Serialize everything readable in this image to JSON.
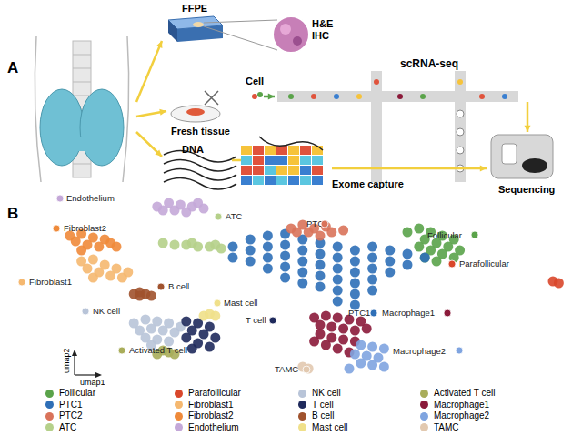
{
  "panel_a": {
    "label": "A",
    "ffpe": "FFPE",
    "stain": [
      "H&E",
      "IHC"
    ],
    "fresh_tissue": "Fresh tissue",
    "cell": "Cell",
    "scrna": "scRNA-seq",
    "dna": "DNA",
    "exome": "Exome capture",
    "sequencing": "Sequencing"
  },
  "panel_b_label": "B",
  "chart_data": {
    "type": "scatter",
    "x_label": "umap1",
    "y_label": "umap2",
    "xlim": [
      0,
      100
    ],
    "ylim": [
      0,
      100
    ],
    "tick_labels": false,
    "grid": false,
    "series": [
      {
        "name": "Follicular",
        "color": "#5aa34a",
        "values": [
          [
            70,
            80
          ],
          [
            72,
            82
          ],
          [
            74,
            80
          ],
          [
            76,
            78
          ],
          [
            78,
            76
          ],
          [
            73,
            76
          ],
          [
            75,
            74
          ],
          [
            77,
            72
          ],
          [
            79,
            70
          ],
          [
            72,
            72
          ],
          [
            74,
            70
          ],
          [
            76,
            68
          ],
          [
            78,
            66
          ],
          [
            75,
            64
          ],
          [
            73,
            66
          ]
        ]
      },
      {
        "name": "PTC1",
        "color": "#2e6fb7",
        "values": [
          [
            40,
            72
          ],
          [
            40,
            66
          ],
          [
            43,
            76
          ],
          [
            43,
            70
          ],
          [
            43,
            64
          ],
          [
            46,
            78
          ],
          [
            46,
            72
          ],
          [
            46,
            66
          ],
          [
            46,
            60
          ],
          [
            49,
            79
          ],
          [
            49,
            73
          ],
          [
            49,
            67
          ],
          [
            49,
            61
          ],
          [
            49,
            55
          ],
          [
            52,
            76
          ],
          [
            52,
            70
          ],
          [
            52,
            64
          ],
          [
            52,
            58
          ],
          [
            52,
            52
          ],
          [
            55,
            74
          ],
          [
            55,
            68
          ],
          [
            55,
            62
          ],
          [
            55,
            56
          ],
          [
            55,
            50
          ],
          [
            58,
            72
          ],
          [
            58,
            66
          ],
          [
            58,
            60
          ],
          [
            58,
            54
          ],
          [
            58,
            48
          ],
          [
            58,
            42
          ],
          [
            61,
            70
          ],
          [
            61,
            64
          ],
          [
            61,
            58
          ],
          [
            61,
            52
          ],
          [
            61,
            46
          ],
          [
            64,
            72
          ],
          [
            64,
            66
          ],
          [
            64,
            60
          ],
          [
            64,
            54
          ],
          [
            67,
            70
          ],
          [
            67,
            64
          ],
          [
            67,
            58
          ],
          [
            70,
            68
          ],
          [
            70,
            62
          ],
          [
            73,
            66
          ],
          [
            61,
            40
          ],
          [
            64,
            48
          ]
        ]
      },
      {
        "name": "PTC2",
        "color": "#d9735a",
        "values": [
          [
            50,
            82
          ],
          [
            52,
            84
          ],
          [
            54,
            82
          ],
          [
            56,
            83
          ],
          [
            53,
            80
          ],
          [
            57,
            80
          ],
          [
            55,
            78
          ],
          [
            59,
            81
          ],
          [
            51,
            80
          ]
        ]
      },
      {
        "name": "ATC",
        "color": "#b5d08a",
        "values": [
          [
            28,
            74
          ],
          [
            30,
            73
          ],
          [
            32,
            73
          ],
          [
            34,
            72
          ],
          [
            36,
            72
          ],
          [
            38,
            71
          ],
          [
            37,
            73
          ],
          [
            33,
            74
          ]
        ]
      },
      {
        "name": "Parafollicular",
        "color": "#d9472b",
        "values": [
          [
            95,
            53
          ],
          [
            96,
            52
          ]
        ]
      },
      {
        "name": "Fibroblast1",
        "color": "#f5b870",
        "values": [
          [
            14,
            64
          ],
          [
            16,
            65
          ],
          [
            18,
            62
          ],
          [
            20,
            60
          ],
          [
            15,
            60
          ],
          [
            17,
            58
          ],
          [
            19,
            56
          ],
          [
            21,
            55
          ],
          [
            16,
            55
          ],
          [
            22,
            58
          ]
        ]
      },
      {
        "name": "Fibroblast2",
        "color": "#ef8a3a",
        "values": [
          [
            12,
            78
          ],
          [
            14,
            79
          ],
          [
            16,
            77
          ],
          [
            18,
            76
          ],
          [
            13,
            75
          ],
          [
            15,
            73
          ],
          [
            17,
            72
          ],
          [
            19,
            74
          ],
          [
            20,
            72
          ],
          [
            14,
            70
          ]
        ]
      },
      {
        "name": "Endothelium",
        "color": "#c4a8d8",
        "values": [
          [
            27,
            94
          ],
          [
            29,
            96
          ],
          [
            31,
            95
          ],
          [
            33,
            94
          ],
          [
            35,
            93
          ],
          [
            30,
            92
          ],
          [
            32,
            91
          ],
          [
            28,
            92
          ],
          [
            34,
            96
          ]
        ]
      },
      {
        "name": "NK cell",
        "color": "#b8c4d8",
        "values": [
          [
            23,
            30
          ],
          [
            25,
            32
          ],
          [
            27,
            31
          ],
          [
            29,
            30
          ],
          [
            24,
            26
          ],
          [
            26,
            27
          ],
          [
            28,
            26
          ],
          [
            30,
            25
          ],
          [
            25,
            22
          ],
          [
            27,
            21
          ],
          [
            29,
            20
          ],
          [
            26,
            18
          ],
          [
            31,
            28
          ]
        ]
      },
      {
        "name": "T cell",
        "color": "#1f2a5c",
        "values": [
          [
            32,
            31
          ],
          [
            34,
            30
          ],
          [
            36,
            28
          ],
          [
            33,
            26
          ],
          [
            35,
            24
          ],
          [
            37,
            22
          ],
          [
            32,
            22
          ],
          [
            34,
            19
          ],
          [
            36,
            17
          ],
          [
            33,
            16
          ]
        ]
      },
      {
        "name": "B cell",
        "color": "#a0522d",
        "values": [
          [
            23,
            46
          ],
          [
            24,
            47
          ],
          [
            25,
            46
          ],
          [
            26,
            45
          ],
          [
            24,
            45
          ]
        ]
      },
      {
        "name": "Mast cell",
        "color": "#f0e08a",
        "values": [
          [
            35,
            34
          ],
          [
            36,
            35
          ],
          [
            37,
            34
          ]
        ]
      },
      {
        "name": "Activated T cell",
        "color": "#a9ad5a",
        "values": [
          [
            28,
            15
          ],
          [
            29,
            14
          ],
          [
            30,
            13
          ],
          [
            27,
            13
          ]
        ]
      },
      {
        "name": "Macrophage1",
        "color": "#8b1a3a",
        "values": [
          [
            54,
            33
          ],
          [
            56,
            34
          ],
          [
            58,
            33
          ],
          [
            60,
            32
          ],
          [
            62,
            31
          ],
          [
            55,
            29
          ],
          [
            57,
            28
          ],
          [
            59,
            27
          ],
          [
            61,
            26
          ],
          [
            63,
            27
          ],
          [
            55,
            24
          ],
          [
            57,
            22
          ],
          [
            59,
            21
          ],
          [
            61,
            20
          ],
          [
            56,
            18
          ],
          [
            58,
            16
          ],
          [
            60,
            14
          ],
          [
            54,
            20
          ]
        ]
      },
      {
        "name": "Macrophage2",
        "color": "#7fa4e0",
        "values": [
          [
            62,
            18
          ],
          [
            64,
            17
          ],
          [
            66,
            16
          ],
          [
            61,
            13
          ],
          [
            63,
            12
          ],
          [
            65,
            11
          ],
          [
            62,
            8
          ],
          [
            64,
            7
          ],
          [
            66,
            6
          ],
          [
            60,
            5
          ]
        ]
      },
      {
        "name": "TAMC",
        "color": "#e2c9b0",
        "values": [
          [
            52,
            6
          ],
          [
            53,
            5
          ]
        ]
      }
    ]
  }
}
